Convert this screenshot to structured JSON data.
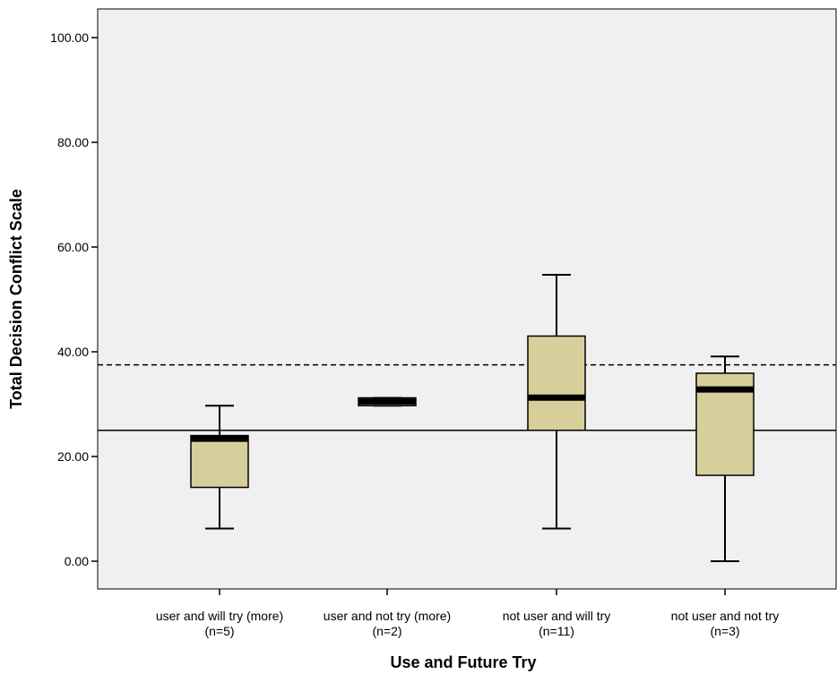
{
  "chart_data": {
    "type": "boxplot",
    "xlabel": "Use and Future Try",
    "ylabel": "Total Decision Conflict Scale",
    "ylim": [
      -5,
      105
    ],
    "yticks": [
      0,
      20,
      40,
      60,
      80,
      100
    ],
    "ytick_labels": [
      "0.00",
      "20.00",
      "40.00",
      "60.00",
      "80.00",
      "100.00"
    ],
    "categories": [
      {
        "line1": "user and will try (more)",
        "line2": "(n=5)"
      },
      {
        "line1": "user and not try (more)",
        "line2": "(n=2)"
      },
      {
        "line1": "not user and will try",
        "line2": "(n=11)"
      },
      {
        "line1": "not user and not try",
        "line2": "(n=3)"
      }
    ],
    "boxes": [
      {
        "min": 6.25,
        "q1": 14.1,
        "median": 23.4,
        "q3": 24.0,
        "max": 29.7
      },
      {
        "min": 29.7,
        "q1": 29.7,
        "median": 30.5,
        "q3": 31.2,
        "max": 31.2
      },
      {
        "min": 6.25,
        "q1": 25.0,
        "median": 31.25,
        "q3": 43.0,
        "max": 54.7
      },
      {
        "min": 0.0,
        "q1": 16.4,
        "median": 32.8,
        "q3": 35.9,
        "max": 39.1
      }
    ],
    "reference_lines": [
      {
        "value": 25.0,
        "style": "solid"
      },
      {
        "value": 37.5,
        "style": "dashed"
      }
    ],
    "colors": {
      "plot_background": "#f0f0f0",
      "box_fill": "#d6cf9b",
      "stroke": "#000000"
    },
    "grid": false,
    "legend": "none"
  }
}
